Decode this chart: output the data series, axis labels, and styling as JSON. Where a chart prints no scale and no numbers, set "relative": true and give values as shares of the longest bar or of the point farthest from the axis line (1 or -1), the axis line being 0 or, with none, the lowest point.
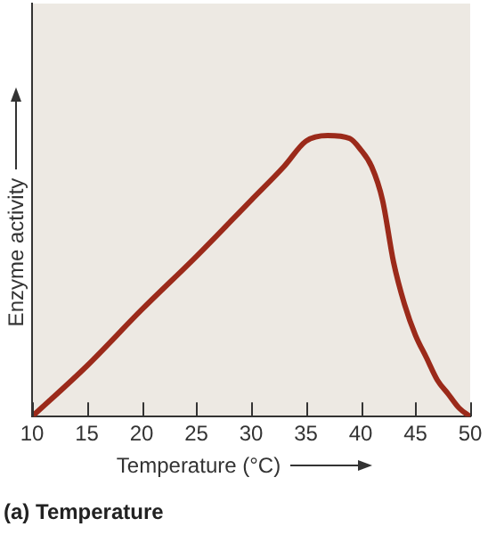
{
  "chart_data": {
    "type": "line",
    "title": "(a) Temperature",
    "xlabel": "Temperature (°C)",
    "ylabel": "Enzyme activity",
    "relative": true,
    "x": [
      10,
      15,
      20,
      25,
      30,
      33,
      35,
      37,
      39,
      40,
      41,
      42,
      43,
      44,
      45,
      46,
      47,
      48,
      49,
      50
    ],
    "xlim": [
      10,
      50
    ],
    "xticks": [
      10,
      15,
      20,
      25,
      30,
      35,
      40,
      45,
      50
    ],
    "series": [
      {
        "color": "#9b2a1a",
        "values": [
          0,
          0.18,
          0.38,
          0.57,
          0.77,
          0.89,
          0.98,
          1,
          0.99,
          0.95,
          0.89,
          0.77,
          0.55,
          0.4,
          0.29,
          0.21,
          0.13,
          0.08,
          0.03,
          0
        ]
      }
    ],
    "grid": false,
    "legend": false,
    "marker": "none",
    "line_style": "solid",
    "tick_labels": "x"
  }
}
